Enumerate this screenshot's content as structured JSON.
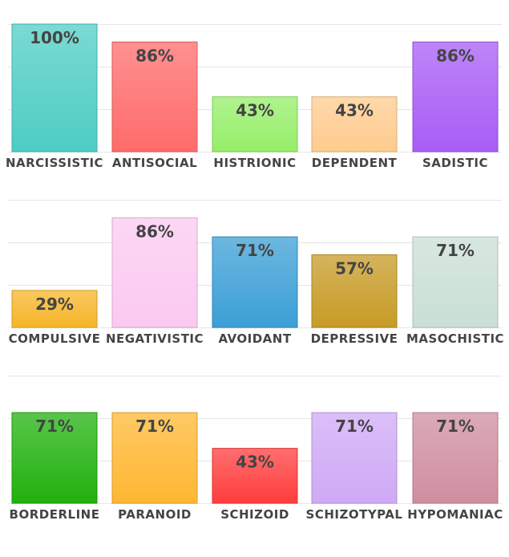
{
  "chart_data": [
    {
      "type": "bar",
      "categories": [
        "NARCISSISTIC",
        "ANTISOCIAL",
        "HISTRIONIC",
        "DEPENDENT",
        "SADISTIC"
      ],
      "values": [
        100,
        86,
        43,
        43,
        86
      ],
      "labels": [
        "100%",
        "86%",
        "43%",
        "43%",
        "86%"
      ],
      "colors": [
        "#4ecdc4",
        "#ff6b6b",
        "#96ee69",
        "#ffcb8e",
        "#a85cf5"
      ],
      "ylim": [
        0,
        100
      ],
      "grid": true
    },
    {
      "type": "bar",
      "categories": [
        "COMPULSIVE",
        "NEGATIVISTIC",
        "AVOIDANT",
        "DEPRESSIVE",
        "MASOCHISTIC"
      ],
      "values": [
        29,
        86,
        71,
        57,
        71
      ],
      "labels": [
        "29%",
        "86%",
        "71%",
        "57%",
        "71%"
      ],
      "colors": [
        "#f6b52a",
        "#fbc9f0",
        "#3b9fd6",
        "#c79b26",
        "#c9dfd5"
      ],
      "ylim": [
        0,
        100
      ],
      "grid": true
    },
    {
      "type": "bar",
      "categories": [
        "BORDERLINE",
        "PARANOID",
        "SCHIZOID",
        "SCHIZOTYPAL",
        "HYPOMANIAC"
      ],
      "values": [
        71,
        71,
        43,
        71,
        71
      ],
      "labels": [
        "71%",
        "71%",
        "43%",
        "71%",
        "71%"
      ],
      "colors": [
        "#21b10d",
        "#ffb732",
        "#ff3d3d",
        "#cfa9f6",
        "#cf8ea0"
      ],
      "ylim": [
        0,
        100
      ],
      "grid": true
    }
  ]
}
